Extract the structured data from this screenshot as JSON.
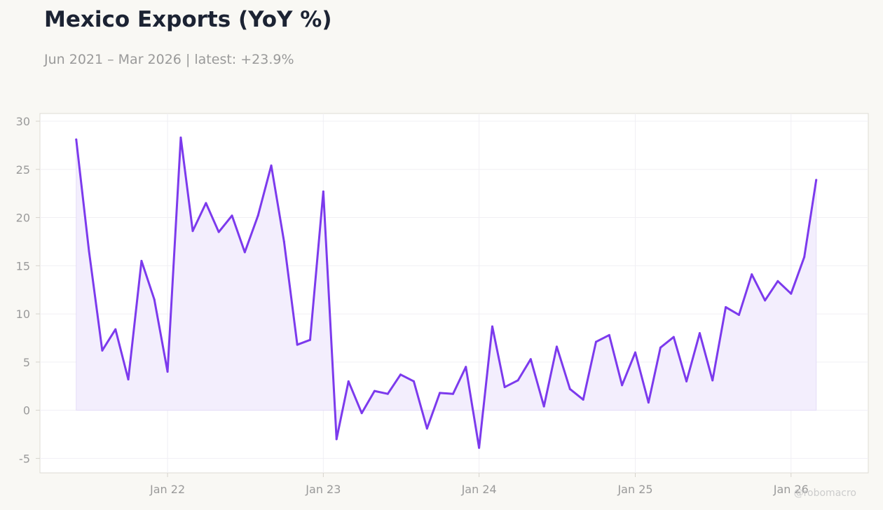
{
  "header": {
    "title": "Mexico Exports (YoY %)",
    "subtitle": "Jun 2021 – Mar 2026 | latest: +23.9%"
  },
  "watermark": "@robomacro",
  "colors": {
    "line": "#7c3aed",
    "fill": "#f2edfd",
    "background": "#f9f8f4",
    "plot_background": "#ffffff"
  },
  "chart_data": {
    "type": "area",
    "title": "Mexico Exports (YoY %)",
    "subtitle": "Jun 2021 – Mar 2026 | latest: +23.9%",
    "xlabel": "",
    "ylabel": "",
    "ylim": [
      -6.5,
      30.8
    ],
    "xlim": [
      "2021-03-08",
      "2026-07-01"
    ],
    "grid": true,
    "legend": "none",
    "y_ticks": [
      -5,
      0,
      5,
      10,
      15,
      20,
      25,
      30
    ],
    "x_ticks": [
      {
        "date": "2022-01-01",
        "label": "Jan 22"
      },
      {
        "date": "2023-01-01",
        "label": "Jan 23"
      },
      {
        "date": "2024-01-01",
        "label": "Jan 24"
      },
      {
        "date": "2025-01-01",
        "label": "Jan 25"
      },
      {
        "date": "2026-01-01",
        "label": "Jan 26"
      }
    ],
    "series": [
      {
        "values": [
          {
            "x": "2021-06-01",
            "y": 28.1
          },
          {
            "x": "2021-07-01",
            "y": 16.5
          },
          {
            "x": "2021-08-01",
            "y": 6.2
          },
          {
            "x": "2021-09-01",
            "y": 8.4
          },
          {
            "x": "2021-10-01",
            "y": 3.2
          },
          {
            "x": "2021-11-01",
            "y": 15.5
          },
          {
            "x": "2021-12-01",
            "y": 11.5
          },
          {
            "x": "2022-01-01",
            "y": 4.0
          },
          {
            "x": "2022-02-01",
            "y": 28.3
          },
          {
            "x": "2022-03-01",
            "y": 18.6
          },
          {
            "x": "2022-04-01",
            "y": 21.5
          },
          {
            "x": "2022-05-01",
            "y": 18.5
          },
          {
            "x": "2022-06-01",
            "y": 20.2
          },
          {
            "x": "2022-07-01",
            "y": 16.4
          },
          {
            "x": "2022-08-01",
            "y": 20.2
          },
          {
            "x": "2022-09-01",
            "y": 25.4
          },
          {
            "x": "2022-10-01",
            "y": 17.5
          },
          {
            "x": "2022-11-01",
            "y": 6.8
          },
          {
            "x": "2022-12-01",
            "y": 7.3
          },
          {
            "x": "2023-01-01",
            "y": 22.7
          },
          {
            "x": "2023-02-01",
            "y": -3.0
          },
          {
            "x": "2023-03-01",
            "y": 3.0
          },
          {
            "x": "2023-04-01",
            "y": -0.3
          },
          {
            "x": "2023-05-01",
            "y": 2.0
          },
          {
            "x": "2023-06-01",
            "y": 1.7
          },
          {
            "x": "2023-07-01",
            "y": 3.7
          },
          {
            "x": "2023-08-01",
            "y": 3.0
          },
          {
            "x": "2023-09-01",
            "y": -1.9
          },
          {
            "x": "2023-10-01",
            "y": 1.8
          },
          {
            "x": "2023-11-01",
            "y": 1.7
          },
          {
            "x": "2023-12-01",
            "y": 4.5
          },
          {
            "x": "2024-01-01",
            "y": -3.9
          },
          {
            "x": "2024-02-01",
            "y": 8.7
          },
          {
            "x": "2024-03-01",
            "y": 2.4
          },
          {
            "x": "2024-04-01",
            "y": 3.1
          },
          {
            "x": "2024-05-01",
            "y": 5.3
          },
          {
            "x": "2024-06-01",
            "y": 0.4
          },
          {
            "x": "2024-07-01",
            "y": 6.6
          },
          {
            "x": "2024-08-01",
            "y": 2.2
          },
          {
            "x": "2024-09-01",
            "y": 1.1
          },
          {
            "x": "2024-10-01",
            "y": 7.1
          },
          {
            "x": "2024-11-01",
            "y": 7.8
          },
          {
            "x": "2024-12-01",
            "y": 2.6
          },
          {
            "x": "2025-01-01",
            "y": 6.0
          },
          {
            "x": "2025-02-01",
            "y": 0.8
          },
          {
            "x": "2025-03-01",
            "y": 6.5
          },
          {
            "x": "2025-04-01",
            "y": 7.6
          },
          {
            "x": "2025-05-01",
            "y": 3.0
          },
          {
            "x": "2025-06-01",
            "y": 8.0
          },
          {
            "x": "2025-07-01",
            "y": 3.1
          },
          {
            "x": "2025-08-01",
            "y": 10.7
          },
          {
            "x": "2025-09-01",
            "y": 9.9
          },
          {
            "x": "2025-10-01",
            "y": 14.1
          },
          {
            "x": "2025-11-01",
            "y": 11.4
          },
          {
            "x": "2025-12-01",
            "y": 13.4
          },
          {
            "x": "2026-01-01",
            "y": 12.1
          },
          {
            "x": "2026-02-01",
            "y": 15.9
          },
          {
            "x": "2026-03-01",
            "y": 23.9
          }
        ]
      }
    ]
  }
}
